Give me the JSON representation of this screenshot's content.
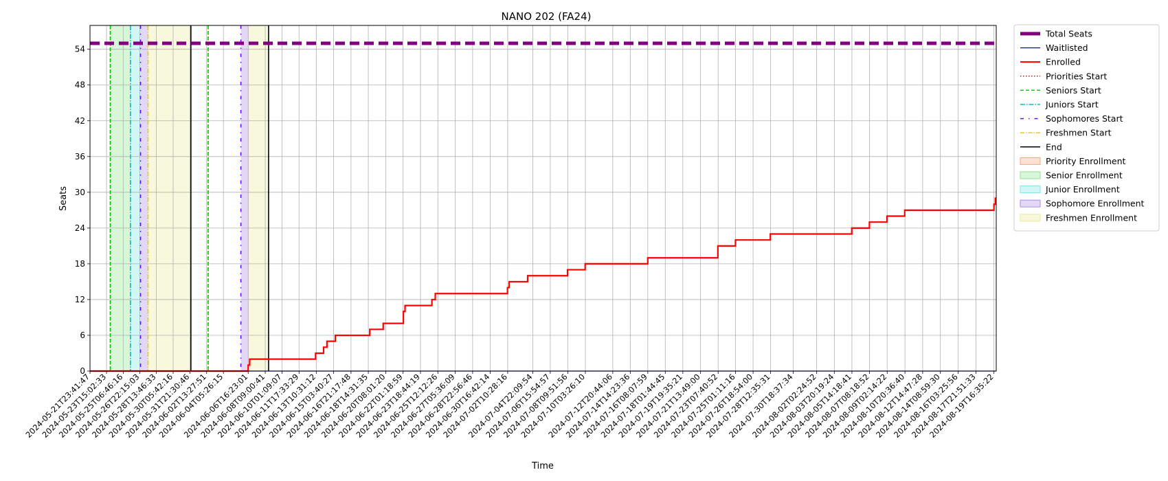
{
  "chart_data": {
    "type": "line",
    "title": "NANO 202 (FA24)",
    "xlabel": "Time",
    "ylabel": "Seats",
    "ylim": [
      0,
      58
    ],
    "yticks": [
      0,
      6,
      12,
      18,
      24,
      30,
      36,
      42,
      48,
      54
    ],
    "grid": true,
    "legend_position": "outside-right-top",
    "x_tick_labels": [
      "2024-05-21T23:41:47",
      "2024-05-23T15:02:33",
      "2024-05-25T06:46:16",
      "2024-05-26T22:15:03",
      "2024-05-28T13:46:33",
      "2024-05-30T05:42:16",
      "2024-05-31T21:30:46",
      "2024-06-02T13:27:51",
      "2024-06-04T05:26:15",
      "2024-06-06T16:23:01",
      "2024-06-08T09:00:41",
      "2024-06-10T01:09:07",
      "2024-06-11T17:33:29",
      "2024-06-13T10:31:12",
      "2024-06-15T03:40:27",
      "2024-06-16T21:17:48",
      "2024-06-18T14:31:35",
      "2024-06-20T08:01:20",
      "2024-06-22T01:18:59",
      "2024-06-23T18:44:19",
      "2024-06-25T12:12:26",
      "2024-06-27T05:36:09",
      "2024-06-28T22:56:46",
      "2024-06-30T16:42:14",
      "2024-07-02T10:28:16",
      "2024-07-04T22:09:54",
      "2024-07-06T15:54:57",
      "2024-07-08T09:51:56",
      "2024-07-10T03:26:10",
      "2024-07-12T20:44:06",
      "2024-07-14T14:23:36",
      "2024-07-16T08:07:59",
      "2024-07-18T01:44:45",
      "2024-07-19T19:35:21",
      "2024-07-21T13:49:00",
      "2024-07-23T07:40:52",
      "2024-07-25T01:11:16",
      "2024-07-26T18:54:00",
      "2024-07-28T12:35:31",
      "2024-07-30T18:37:34",
      "2024-08-02T02:24:52",
      "2024-08-03T20:19:24",
      "2024-08-05T14:18:41",
      "2024-08-07T08:18:52",
      "2024-08-09T02:14:22",
      "2024-08-10T20:36:40",
      "2024-08-12T14:47:28",
      "2024-08-14T08:59:30",
      "2024-08-16T03:25:56",
      "2024-08-17T21:51:33",
      "2024-08-19T16:35:22"
    ],
    "x_range": [
      "2024-05-21T23:41:47",
      "2024-08-19T22:00:00"
    ],
    "series": [
      {
        "name": "Total Seats",
        "color": "#800080",
        "style": "dashed-thick",
        "x": [
          "2024-05-21T23:41:47",
          "2024-08-19T22:00:00"
        ],
        "y": [
          55,
          55
        ]
      },
      {
        "name": "Waitlisted",
        "color": "#0000ff",
        "style": "solid-thin",
        "x": [
          "2024-05-21T23:41:47",
          "2024-08-19T22:00:00"
        ],
        "y": [
          0,
          0
        ]
      },
      {
        "name": "Enrolled",
        "color": "#ff0000",
        "style": "step",
        "x": [
          "2024-05-21T23:41:47",
          "2024-06-06T16:23:01",
          "2024-06-06T20:00:00",
          "2024-06-07T06:00:00",
          "2024-06-13T09:00:00",
          "2024-06-14T04:00:00",
          "2024-06-14T12:00:00",
          "2024-06-15T08:00:00",
          "2024-06-18T18:00:00",
          "2024-06-20T02:00:00",
          "2024-06-22T02:00:00",
          "2024-06-22T06:00:00",
          "2024-06-24T22:00:00",
          "2024-06-25T06:00:00",
          "2024-07-02T10:00:00",
          "2024-07-02T14:00:00",
          "2024-07-04T10:00:00",
          "2024-07-08T09:00:00",
          "2024-07-10T03:00:00",
          "2024-07-16T08:00:00",
          "2024-07-23T07:00:00",
          "2024-07-25T01:00:00",
          "2024-07-28T12:00:00",
          "2024-08-05T14:00:00",
          "2024-08-07T08:00:00",
          "2024-08-09T02:00:00",
          "2024-08-10T20:00:00",
          "2024-08-19T16:35:22",
          "2024-08-19T20:00:00",
          "2024-08-19T22:00:00"
        ],
        "y": [
          0,
          1,
          2,
          2,
          3,
          4,
          5,
          6,
          7,
          8,
          10,
          11,
          12,
          13,
          14,
          15,
          16,
          17,
          18,
          19,
          21,
          22,
          23,
          24,
          25,
          26,
          27,
          28,
          29,
          29
        ]
      }
    ],
    "event_lines": [
      {
        "name": "Priorities Start",
        "color": "#ff0000",
        "style": "dotted",
        "x": [
          "2024-05-24T00:00:00",
          "2024-06-02T17:00:00"
        ]
      },
      {
        "name": "Seniors Start",
        "color": "#00cc00",
        "style": "dashed",
        "x": [
          "2024-05-24T00:00:00",
          "2024-06-02T17:00:00"
        ]
      },
      {
        "name": "Juniors Start",
        "color": "#00bfbf",
        "style": "dashdot",
        "x": [
          "2024-05-26T00:00:00"
        ]
      },
      {
        "name": "Sophomores Start",
        "color": "#6a0dff",
        "style": "dashdot-sparse",
        "x": [
          "2024-05-27T00:00:00",
          "2024-06-05T23:00:00"
        ]
      },
      {
        "name": "Freshmen Start",
        "color": "#e6d000",
        "style": "dashdot",
        "x": [
          "2024-05-27T18:00:00"
        ]
      },
      {
        "name": "End",
        "color": "#000000",
        "style": "solid",
        "x": [
          "2024-06-01T00:00:00",
          "2024-06-08T17:00:00"
        ]
      }
    ],
    "spans": [
      {
        "name": "Priority Enrollment",
        "color": "#f4a582",
        "ranges": []
      },
      {
        "name": "Senior Enrollment",
        "color": "#8ee58e",
        "ranges": [
          [
            "2024-05-24T00:00:00",
            "2024-05-26T00:00:00"
          ]
        ]
      },
      {
        "name": "Junior Enrollment",
        "color": "#80e6e6",
        "ranges": [
          [
            "2024-05-26T00:00:00",
            "2024-05-27T00:00:00"
          ]
        ]
      },
      {
        "name": "Sophomore Enrollment",
        "color": "#b08be6",
        "ranges": [
          [
            "2024-05-27T00:00:00",
            "2024-05-27T18:00:00"
          ],
          [
            "2024-06-05T23:00:00",
            "2024-06-06T18:00:00"
          ]
        ]
      },
      {
        "name": "Freshmen Enrollment",
        "color": "#ecec9a",
        "ranges": [
          [
            "2024-05-27T18:00:00",
            "2024-06-01T00:00:00"
          ],
          [
            "2024-06-06T18:00:00",
            "2024-06-08T17:00:00"
          ]
        ]
      }
    ],
    "legend": [
      {
        "label": "Total Seats",
        "kind": "line",
        "color": "#800080",
        "dash": "",
        "width": 5
      },
      {
        "label": "Waitlisted",
        "kind": "line",
        "color": "#0000ff",
        "dash": "",
        "width": 1.2
      },
      {
        "label": "Enrolled",
        "kind": "line",
        "color": "#ff0000",
        "dash": "",
        "width": 2.2
      },
      {
        "label": "Priorities Start",
        "kind": "line",
        "color": "#ff0000",
        "dash": "1.5,2.5",
        "width": 1.5
      },
      {
        "label": "Seniors Start",
        "kind": "line",
        "color": "#00cc00",
        "dash": "5,3",
        "width": 1.5
      },
      {
        "label": "Juniors Start",
        "kind": "line",
        "color": "#00bfbf",
        "dash": "7,2,1.5,2",
        "width": 1.5
      },
      {
        "label": "Sophomores Start",
        "kind": "line",
        "color": "#6a0dff",
        "dash": "5,7,1.5,7",
        "width": 1.5
      },
      {
        "label": "Freshmen Start",
        "kind": "line",
        "color": "#e6d000",
        "dash": "6,2,1.5,2",
        "width": 1.5
      },
      {
        "label": "End",
        "kind": "line",
        "color": "#000000",
        "dash": "",
        "width": 1.5
      },
      {
        "label": "Priority Enrollment",
        "kind": "patch",
        "color": "#f4a582"
      },
      {
        "label": "Senior Enrollment",
        "kind": "patch",
        "color": "#8ee58e"
      },
      {
        "label": "Junior Enrollment",
        "kind": "patch",
        "color": "#80e6e6"
      },
      {
        "label": "Sophomore Enrollment",
        "kind": "patch",
        "color": "#b08be6"
      },
      {
        "label": "Freshmen Enrollment",
        "kind": "patch",
        "color": "#ecec9a"
      }
    ]
  }
}
